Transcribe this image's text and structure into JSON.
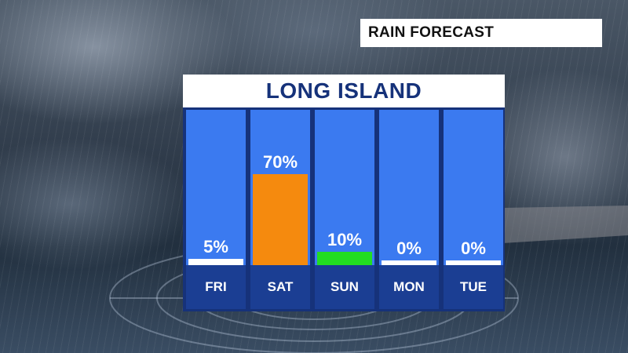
{
  "title_box": "RAIN FORECAST",
  "panel_title": "LONG ISLAND",
  "colors": {
    "column_bg": "#3b7af0",
    "frame": "#16327a",
    "day_band": "#1b3e93"
  },
  "chart_data": {
    "type": "bar",
    "title": "LONG ISLAND",
    "categories": [
      "FRI",
      "SAT",
      "SUN",
      "MON",
      "TUE"
    ],
    "values": [
      5,
      70,
      10,
      0,
      0
    ],
    "value_labels": [
      "5%",
      "70%",
      "10%",
      "0%",
      "0%"
    ],
    "bar_colors": [
      "#ffffff",
      "#f58a0e",
      "#22dd22",
      "#ffffff",
      "#ffffff"
    ],
    "ylim": [
      0,
      100
    ],
    "unit": "%",
    "grid": false
  }
}
